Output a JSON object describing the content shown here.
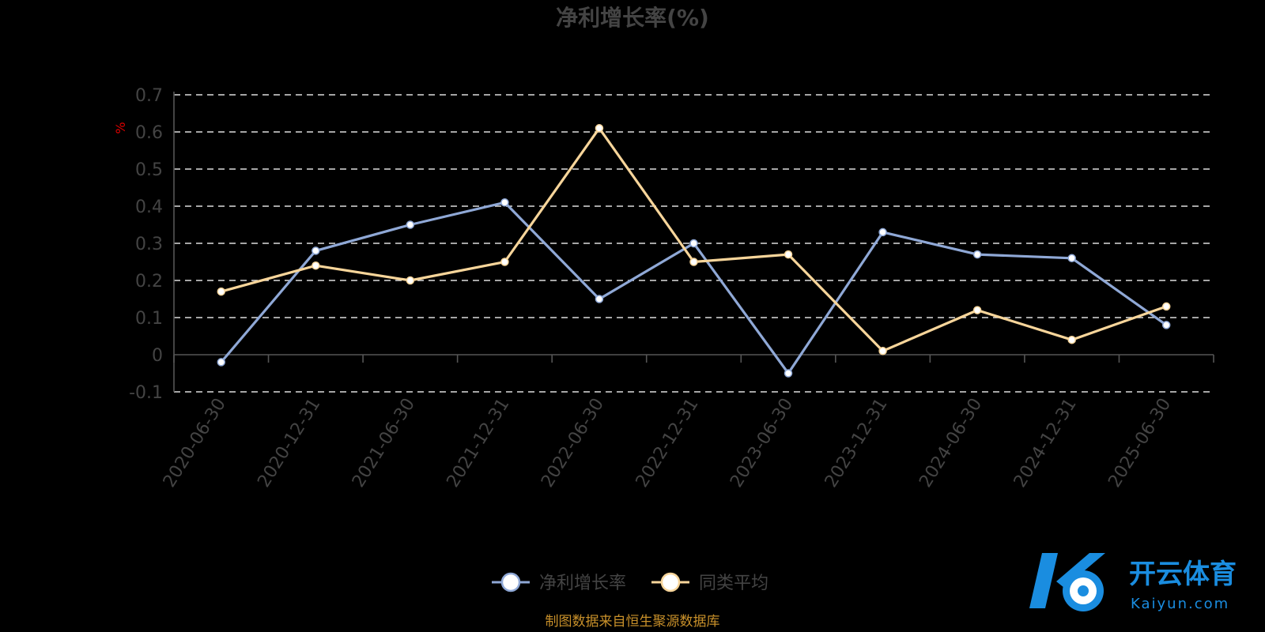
{
  "chart_data": {
    "type": "line",
    "title": "净利增长率(%)",
    "ylabel": "%",
    "categories": [
      "2020-06-30",
      "2020-12-31",
      "2021-06-30",
      "2021-12-31",
      "2022-06-30",
      "2022-12-31",
      "2023-06-30",
      "2023-12-31",
      "2024-06-30",
      "2024-12-31",
      "2025-06-30"
    ],
    "y_ticks": [
      "0.7",
      "0.6",
      "0.5",
      "0.4",
      "0.3",
      "0.2",
      "0.1",
      "0",
      "-0.1"
    ],
    "ylim": [
      -0.1,
      0.7
    ],
    "grid": true,
    "legend_position": "bottom",
    "series": [
      {
        "name": "净利增长率",
        "color": "#8fa8d6",
        "values": [
          -0.02,
          0.28,
          0.35,
          0.41,
          0.15,
          0.3,
          -0.05,
          0.33,
          0.27,
          0.26,
          0.08
        ]
      },
      {
        "name": "同类平均",
        "color": "#f7d59a",
        "values": [
          0.17,
          0.24,
          0.2,
          0.25,
          0.61,
          0.25,
          0.27,
          0.01,
          0.12,
          0.04,
          0.13
        ]
      }
    ]
  },
  "footer": {
    "source": "制图数据来自恒生聚源数据库"
  },
  "watermark": {
    "brand": "开云体育",
    "domain": "Kaiyun.com",
    "icon": "k-ball-logo-icon"
  }
}
